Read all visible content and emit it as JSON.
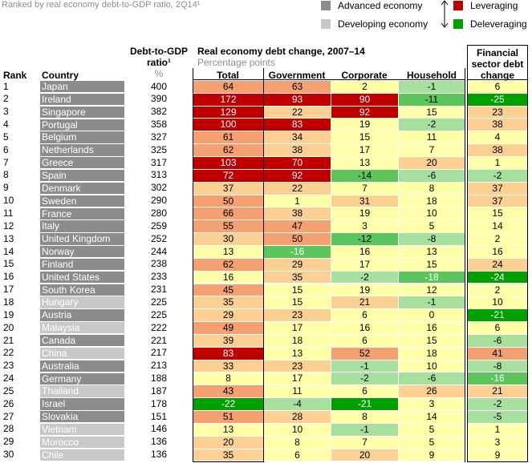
{
  "header": {
    "subtitle": "Ranked by real economy debt-to-GDP ratio, 2Q14¹",
    "rank": "Rank",
    "country": "Country",
    "ratio_line1": "Debt-to-GDP",
    "ratio_line2": "ratio¹",
    "ratio_unit": "%",
    "change_title": "Real economy debt change, 2007–14",
    "change_unit": "Percentage points",
    "total": "Total",
    "government": "Government",
    "corporate": "Corporate",
    "household": "Household",
    "fin_line1": "Financial",
    "fin_line2": "sector debt",
    "fin_line3": "change"
  },
  "legend": {
    "advanced": "Advanced economy",
    "developing": "Developing economy",
    "leveraging": "Leveraging",
    "deleveraging": "Deleveraging"
  },
  "colors": {
    "advanced": "#8c8c8c",
    "developing": "#c8c8c8",
    "leveraging": "#c00000",
    "deleveraging": "#00a000"
  },
  "chart_data": {
    "type": "table",
    "columns": [
      "Rank",
      "Country",
      "Debt-to-GDP ratio",
      "Total",
      "Government",
      "Corporate",
      "Household",
      "Financial sector debt change"
    ],
    "rows": [
      {
        "rank": "1",
        "country": "Japan",
        "type": "advanced",
        "ratio": "400",
        "total": 64,
        "gov": 63,
        "corp": 2,
        "house": -1,
        "fin": 6
      },
      {
        "rank": "2",
        "country": "Ireland",
        "type": "advanced",
        "ratio": "390",
        "total": 172,
        "gov": 93,
        "corp": 90,
        "house": -11,
        "fin": -25
      },
      {
        "rank": "3",
        "country": "Singapore",
        "type": "advanced",
        "ratio": "382",
        "total": 129,
        "gov": 22,
        "corp": 92,
        "house": 15,
        "fin": 23
      },
      {
        "rank": "4",
        "country": "Portugal",
        "type": "advanced",
        "ratio": "358",
        "total": 100,
        "gov": 83,
        "corp": 19,
        "house": -2,
        "fin": 38
      },
      {
        "rank": "5",
        "country": "Belgium",
        "type": "advanced",
        "ratio": "327",
        "total": 61,
        "gov": 34,
        "corp": 15,
        "house": 11,
        "fin": 4
      },
      {
        "rank": "6",
        "country": "Netherlands",
        "type": "advanced",
        "ratio": "325",
        "total": 62,
        "gov": 38,
        "corp": 17,
        "house": 7,
        "fin": 38
      },
      {
        "rank": "7",
        "country": "Greece",
        "type": "advanced",
        "ratio": "317",
        "total": 103,
        "gov": 70,
        "corp": 13,
        "house": 20,
        "fin": 1
      },
      {
        "rank": "8",
        "country": "Spain",
        "type": "advanced",
        "ratio": "313",
        "total": 72,
        "gov": 92,
        "corp": -14,
        "house": -6,
        "fin": -2
      },
      {
        "rank": "9",
        "country": "Denmark",
        "type": "advanced",
        "ratio": "302",
        "total": 37,
        "gov": 22,
        "corp": 7,
        "house": 8,
        "fin": 37
      },
      {
        "rank": "10",
        "country": "Sweden",
        "type": "advanced",
        "ratio": "290",
        "total": 50,
        "gov": 1,
        "corp": 31,
        "house": 18,
        "fin": 37
      },
      {
        "rank": "11",
        "country": "France",
        "type": "advanced",
        "ratio": "280",
        "total": 66,
        "gov": 38,
        "corp": 19,
        "house": 10,
        "fin": 15
      },
      {
        "rank": "12",
        "country": "Italy",
        "type": "advanced",
        "ratio": "259",
        "total": 55,
        "gov": 47,
        "corp": 3,
        "house": 5,
        "fin": 14
      },
      {
        "rank": "13",
        "country": "United Kingdom",
        "type": "advanced",
        "ratio": "252",
        "total": 30,
        "gov": 50,
        "corp": -12,
        "house": -8,
        "fin": 2
      },
      {
        "rank": "14",
        "country": "Norway",
        "type": "advanced",
        "ratio": "244",
        "total": 13,
        "gov": -16,
        "corp": 16,
        "house": 13,
        "fin": 16
      },
      {
        "rank": "15",
        "country": "Finland",
        "type": "advanced",
        "ratio": "238",
        "total": 62,
        "gov": 29,
        "corp": 17,
        "house": 15,
        "fin": 24
      },
      {
        "rank": "16",
        "country": "United States",
        "type": "advanced",
        "ratio": "233",
        "total": 16,
        "gov": 35,
        "corp": -2,
        "house": -18,
        "fin": -24
      },
      {
        "rank": "17",
        "country": "South Korea",
        "type": "advanced",
        "ratio": "231",
        "total": 45,
        "gov": 15,
        "corp": 19,
        "house": 12,
        "fin": 2
      },
      {
        "rank": "18",
        "country": "Hungary",
        "type": "developing",
        "ratio": "225",
        "total": 35,
        "gov": 15,
        "corp": 21,
        "house": -1,
        "fin": 10
      },
      {
        "rank": "19",
        "country": "Austria",
        "type": "advanced",
        "ratio": "225",
        "total": 29,
        "gov": 23,
        "corp": 6,
        "house": 0,
        "fin": -21
      },
      {
        "rank": "20",
        "country": "Malaysia",
        "type": "developing",
        "ratio": "222",
        "total": 49,
        "gov": 17,
        "corp": 16,
        "house": 16,
        "fin": 6
      },
      {
        "rank": "21",
        "country": "Canada",
        "type": "advanced",
        "ratio": "221",
        "total": 39,
        "gov": 18,
        "corp": 6,
        "house": 15,
        "fin": -6
      },
      {
        "rank": "22",
        "country": "China",
        "type": "developing",
        "ratio": "217",
        "total": 83,
        "gov": 13,
        "corp": 52,
        "house": 18,
        "fin": 41
      },
      {
        "rank": "23",
        "country": "Australia",
        "type": "advanced",
        "ratio": "213",
        "total": 33,
        "gov": 23,
        "corp": -1,
        "house": 10,
        "fin": -8
      },
      {
        "rank": "24",
        "country": "Germany",
        "type": "advanced",
        "ratio": "188",
        "total": 8,
        "gov": 17,
        "corp": -2,
        "house": -6,
        "fin": -16
      },
      {
        "rank": "25",
        "country": "Thailand",
        "type": "developing",
        "ratio": "187",
        "total": 43,
        "gov": 11,
        "corp": 6,
        "house": 26,
        "fin": 21
      },
      {
        "rank": "26",
        "country": "Israel",
        "type": "advanced",
        "ratio": "178",
        "total": -22,
        "gov": -4,
        "corp": -21,
        "house": 3,
        "fin": -2
      },
      {
        "rank": "27",
        "country": "Slovakia",
        "type": "advanced",
        "ratio": "151",
        "total": 51,
        "gov": 28,
        "corp": 8,
        "house": 14,
        "fin": -5
      },
      {
        "rank": "28",
        "country": "Vietnam",
        "type": "developing",
        "ratio": "146",
        "total": 13,
        "gov": 10,
        "corp": -1,
        "house": 5,
        "fin": 1
      },
      {
        "rank": "29",
        "country": "Morocco",
        "type": "developing",
        "ratio": "136",
        "total": 20,
        "gov": 8,
        "corp": 7,
        "house": 5,
        "fin": 3
      },
      {
        "rank": "30",
        "country": "Chile",
        "type": "developing",
        "ratio": "136",
        "total": 35,
        "gov": 6,
        "corp": 20,
        "house": 9,
        "fin": 9
      }
    ]
  }
}
